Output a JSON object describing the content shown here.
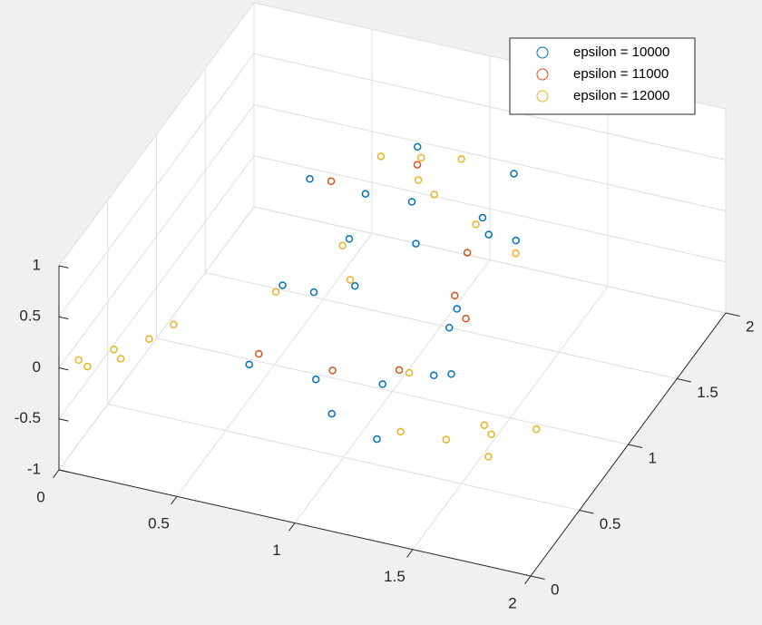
{
  "chart_data": {
    "type": "scatter3",
    "xlim": [
      0,
      2
    ],
    "ylim": [
      0,
      2
    ],
    "zlim": [
      -1,
      1
    ],
    "xticks": [
      0,
      0.5,
      1,
      1.5,
      2
    ],
    "yticks": [
      0,
      0.5,
      1,
      1.5,
      2
    ],
    "zticks": [
      -1,
      -0.5,
      0,
      0.5,
      1
    ],
    "grid": true,
    "legend": "upper right",
    "series": [
      {
        "name": "epsilon = 10000",
        "color": "#0072BD",
        "x": [
          0.6,
          0.7,
          0.8,
          0.9,
          1.0,
          1.1,
          1.2,
          1.3,
          1.4,
          0.65,
          0.8,
          1.0,
          1.15,
          1.35,
          0.7,
          0.9,
          1.1,
          1.3,
          1.45,
          0.75,
          0.95,
          1.25
        ],
        "y": [
          0.5,
          0.6,
          0.7,
          0.8,
          0.9,
          1.0,
          1.1,
          1.2,
          1.3,
          1.0,
          1.1,
          1.2,
          1.3,
          1.4,
          1.45,
          1.5,
          0.6,
          0.7,
          0.9,
          0.8,
          0.5,
          1.0
        ],
        "z": [
          -0.3,
          0.4,
          -0.6,
          0.7,
          -0.8,
          0.5,
          -0.4,
          0.6,
          0.3,
          0.9,
          -0.2,
          0.6,
          -0.5,
          0.8,
          0.2,
          0.7,
          -0.9,
          -0.3,
          0.9,
          0.1,
          -0.6,
          -0.7
        ]
      },
      {
        "name": "epsilon = 11000",
        "color": "#D95319",
        "x": [
          0.62,
          0.85,
          1.05,
          1.25,
          0.72,
          1.12,
          1.38,
          0.92
        ],
        "y": [
          0.55,
          0.75,
          0.95,
          1.15,
          1.05,
          1.35,
          0.85,
          1.45
        ],
        "z": [
          -0.25,
          -0.55,
          -0.7,
          -0.35,
          0.85,
          -0.45,
          0.75,
          0.6
        ]
      },
      {
        "name": "epsilon = 12000",
        "color": "#EDB120",
        "x": [
          0.05,
          0.15,
          0.25,
          0.3,
          0.2,
          0.1,
          0.6,
          0.75,
          0.9,
          0.8,
          1.6,
          1.75,
          1.9,
          1.8,
          1.7,
          0.68,
          0.88,
          1.08,
          1.28,
          1.02,
          0.78,
          1.18,
          1.42
        ],
        "y": [
          0.08,
          0.2,
          0.32,
          0.45,
          0.15,
          0.05,
          1.85,
          1.9,
          1.95,
          1.75,
          0.1,
          0.2,
          0.3,
          0.05,
          0.25,
          0.58,
          0.78,
          0.98,
          1.18,
          1.38,
          1.1,
          0.65,
          1.25
        ],
        "z": [
          0,
          0,
          0,
          0,
          0,
          0,
          0,
          0,
          0,
          0,
          0,
          0,
          0,
          0,
          0,
          0.35,
          0.65,
          -0.75,
          0.55,
          0.45,
          -0.15,
          -0.85,
          0.25
        ]
      }
    ]
  }
}
